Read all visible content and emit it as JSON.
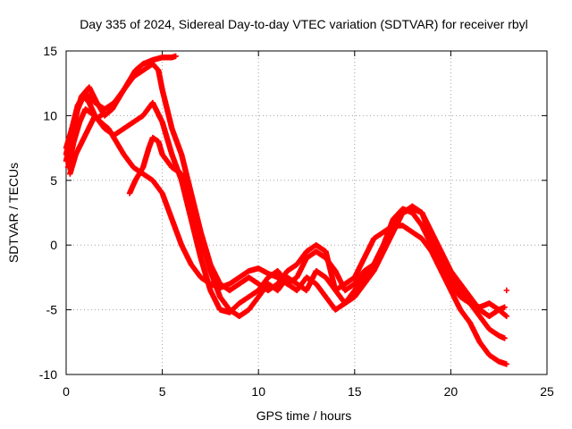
{
  "chart_data": {
    "type": "scatter",
    "title": "Day 335 of 2024, Sidereal Day-to-day VTEC variation (SDTVAR) for receiver rbyl",
    "xlabel": "GPS time / hours",
    "ylabel": "SDTVAR / TECUs",
    "xlim": [
      0,
      25
    ],
    "ylim": [
      -10,
      15
    ],
    "xticks": [
      0,
      5,
      10,
      15,
      20,
      25
    ],
    "yticks": [
      -10,
      -5,
      0,
      5,
      10,
      15
    ],
    "grid": true,
    "marker": "+",
    "color": "#ff0000",
    "series": [
      {
        "name": "track-1",
        "points": [
          [
            0.0,
            6.5
          ],
          [
            0.3,
            8.5
          ],
          [
            0.6,
            10.5
          ],
          [
            0.9,
            11.5
          ],
          [
            1.2,
            11.0
          ],
          [
            1.5,
            10.0
          ],
          [
            1.8,
            9.5
          ],
          [
            2.2,
            9.0
          ],
          [
            2.6,
            8.0
          ],
          [
            3.0,
            7.0
          ],
          [
            3.5,
            6.0
          ],
          [
            4.0,
            5.5
          ],
          [
            4.5,
            5.0
          ],
          [
            5.0,
            4.0
          ],
          [
            5.5,
            2.0
          ],
          [
            6.0,
            0.0
          ],
          [
            6.5,
            -1.5
          ],
          [
            7.0,
            -2.5
          ],
          [
            7.5,
            -3.0
          ],
          [
            8.0,
            -3.3
          ],
          [
            8.5,
            -3.0
          ],
          [
            9.0,
            -2.5
          ],
          [
            9.5,
            -2.0
          ],
          [
            10.0,
            -1.8
          ],
          [
            10.5,
            -2.2
          ],
          [
            11.0,
            -2.5
          ],
          [
            11.5,
            -3.0
          ],
          [
            12.0,
            -2.5
          ],
          [
            12.5,
            -1.0
          ],
          [
            13.0,
            -0.5
          ],
          [
            13.5,
            -1.0
          ],
          [
            14.0,
            -2.0
          ],
          [
            14.5,
            -3.5
          ],
          [
            15.0,
            -3.0
          ],
          [
            15.5,
            -2.0
          ],
          [
            16.0,
            -1.5
          ],
          [
            16.5,
            0.0
          ],
          [
            17.0,
            1.5
          ],
          [
            17.5,
            2.5
          ],
          [
            18.0,
            2.8
          ],
          [
            18.5,
            2.5
          ],
          [
            19.0,
            1.0
          ],
          [
            19.5,
            -0.5
          ],
          [
            20.0,
            -2.0
          ],
          [
            20.5,
            -3.0
          ],
          [
            21.0,
            -4.0
          ],
          [
            21.5,
            -5.0
          ],
          [
            22.0,
            -5.5
          ],
          [
            22.5,
            -5.0
          ],
          [
            22.8,
            -4.8
          ]
        ]
      },
      {
        "name": "track-2",
        "points": [
          [
            0.0,
            7.0
          ],
          [
            0.3,
            9.0
          ],
          [
            0.6,
            10.8
          ],
          [
            1.0,
            11.8
          ],
          [
            1.5,
            11.0
          ],
          [
            2.0,
            10.5
          ],
          [
            2.5,
            11.0
          ],
          [
            3.0,
            12.0
          ],
          [
            3.5,
            13.0
          ],
          [
            4.0,
            13.5
          ],
          [
            4.5,
            14.0
          ],
          [
            4.8,
            13.5
          ],
          [
            5.0,
            12.0
          ],
          [
            5.5,
            9.0
          ],
          [
            6.0,
            7.0
          ],
          [
            6.5,
            4.0
          ],
          [
            7.0,
            1.0
          ],
          [
            7.5,
            -1.5
          ],
          [
            8.0,
            -3.0
          ],
          [
            8.5,
            -3.5
          ],
          [
            9.0,
            -3.0
          ],
          [
            9.5,
            -2.5
          ],
          [
            10.0,
            -3.0
          ],
          [
            10.5,
            -3.5
          ],
          [
            11.0,
            -3.0
          ],
          [
            11.5,
            -2.0
          ],
          [
            12.0,
            -1.5
          ],
          [
            12.5,
            -0.5
          ],
          [
            13.0,
            0.0
          ],
          [
            13.5,
            -0.5
          ],
          [
            14.0,
            -3.5
          ],
          [
            14.5,
            -4.5
          ],
          [
            15.0,
            -4.0
          ],
          [
            15.5,
            -3.0
          ],
          [
            16.0,
            -2.0
          ],
          [
            16.5,
            -0.5
          ],
          [
            17.0,
            1.0
          ],
          [
            17.5,
            2.5
          ],
          [
            18.0,
            3.0
          ],
          [
            18.5,
            2.5
          ],
          [
            19.0,
            0.5
          ],
          [
            19.5,
            -1.0
          ],
          [
            20.0,
            -2.5
          ],
          [
            20.5,
            -3.5
          ],
          [
            21.0,
            -4.5
          ],
          [
            21.5,
            -5.5
          ],
          [
            22.0,
            -6.5
          ],
          [
            22.5,
            -7.0
          ],
          [
            22.8,
            -7.2
          ]
        ]
      },
      {
        "name": "track-3",
        "points": [
          [
            0.0,
            7.5
          ],
          [
            0.4,
            9.5
          ],
          [
            0.8,
            11.5
          ],
          [
            1.2,
            12.2
          ],
          [
            1.6,
            11.0
          ],
          [
            2.0,
            10.0
          ],
          [
            2.4,
            10.5
          ],
          [
            2.8,
            11.5
          ],
          [
            3.2,
            12.5
          ],
          [
            3.6,
            13.5
          ],
          [
            4.0,
            14.0
          ],
          [
            4.5,
            14.3
          ],
          [
            5.0,
            14.5
          ],
          [
            5.5,
            14.5
          ],
          [
            5.7,
            14.6
          ]
        ]
      },
      {
        "name": "track-4",
        "points": [
          [
            3.3,
            4.0
          ],
          [
            3.6,
            5.0
          ],
          [
            4.0,
            6.0
          ],
          [
            4.3,
            7.5
          ],
          [
            4.5,
            8.3
          ],
          [
            4.8,
            8.0
          ],
          [
            5.0,
            7.0
          ],
          [
            5.5,
            6.0
          ],
          [
            6.0,
            5.5
          ],
          [
            6.5,
            3.0
          ],
          [
            7.0,
            0.5
          ],
          [
            7.5,
            -2.0
          ],
          [
            8.0,
            -4.0
          ],
          [
            8.5,
            -5.0
          ],
          [
            9.0,
            -5.5
          ],
          [
            9.5,
            -5.0
          ],
          [
            10.0,
            -4.0
          ],
          [
            10.5,
            -3.0
          ],
          [
            11.0,
            -3.5
          ],
          [
            11.5,
            -2.5
          ],
          [
            12.0,
            -3.0
          ],
          [
            12.5,
            -3.5
          ],
          [
            13.0,
            -2.0
          ],
          [
            13.5,
            -2.5
          ],
          [
            14.0,
            -3.5
          ],
          [
            14.5,
            -3.0
          ],
          [
            15.0,
            -2.5
          ],
          [
            15.5,
            -1.0
          ],
          [
            16.0,
            0.5
          ],
          [
            16.5,
            1.0
          ],
          [
            17.0,
            1.5
          ],
          [
            17.5,
            1.5
          ],
          [
            18.0,
            1.0
          ],
          [
            18.5,
            0.5
          ],
          [
            19.0,
            -0.5
          ],
          [
            19.5,
            -2.0
          ],
          [
            20.0,
            -3.5
          ],
          [
            20.5,
            -5.0
          ],
          [
            21.0,
            -6.0
          ],
          [
            21.5,
            -7.5
          ],
          [
            22.0,
            -8.5
          ],
          [
            22.5,
            -9.0
          ],
          [
            22.9,
            -9.2
          ]
        ]
      },
      {
        "name": "track-5",
        "points": [
          [
            0.2,
            5.5
          ],
          [
            0.5,
            7.0
          ],
          [
            1.0,
            8.5
          ],
          [
            1.5,
            10.0
          ],
          [
            2.0,
            9.0
          ],
          [
            2.5,
            8.5
          ],
          [
            3.0,
            9.0
          ],
          [
            3.5,
            9.5
          ],
          [
            4.0,
            10.0
          ],
          [
            4.5,
            11.0
          ],
          [
            5.0,
            9.5
          ],
          [
            5.5,
            7.0
          ],
          [
            6.0,
            5.0
          ],
          [
            6.5,
            2.0
          ],
          [
            7.0,
            -1.0
          ],
          [
            7.5,
            -3.5
          ],
          [
            8.0,
            -5.0
          ],
          [
            8.5,
            -5.2
          ],
          [
            9.0,
            -4.5
          ],
          [
            9.5,
            -4.0
          ],
          [
            10.0,
            -3.5
          ],
          [
            10.5,
            -2.5
          ],
          [
            11.0,
            -2.0
          ],
          [
            11.5,
            -3.0
          ],
          [
            12.0,
            -3.5
          ],
          [
            12.5,
            -2.5
          ],
          [
            13.0,
            -3.0
          ],
          [
            13.5,
            -4.0
          ],
          [
            14.0,
            -5.0
          ],
          [
            14.5,
            -4.5
          ],
          [
            15.0,
            -3.5
          ],
          [
            15.5,
            -2.5
          ],
          [
            16.0,
            -1.5
          ],
          [
            16.5,
            0.0
          ],
          [
            17.0,
            2.0
          ],
          [
            17.5,
            2.8
          ],
          [
            18.0,
            2.5
          ],
          [
            18.5,
            1.5
          ],
          [
            19.0,
            0.0
          ],
          [
            19.5,
            -1.5
          ],
          [
            20.0,
            -3.0
          ],
          [
            20.5,
            -4.0
          ],
          [
            21.0,
            -4.5
          ],
          [
            21.5,
            -4.8
          ],
          [
            22.0,
            -4.5
          ],
          [
            22.5,
            -5.0
          ],
          [
            22.9,
            -5.5
          ]
        ]
      },
      {
        "name": "track-6",
        "points": [
          [
            0.1,
            6.0
          ],
          [
            0.4,
            8.0
          ],
          [
            0.7,
            9.5
          ],
          [
            1.0,
            10.5
          ],
          [
            1.3,
            10.2
          ],
          [
            1.6,
            9.8
          ],
          [
            2.0,
            10.2
          ]
        ]
      },
      {
        "name": "stray",
        "points": [
          [
            22.9,
            -3.5
          ]
        ]
      }
    ]
  }
}
